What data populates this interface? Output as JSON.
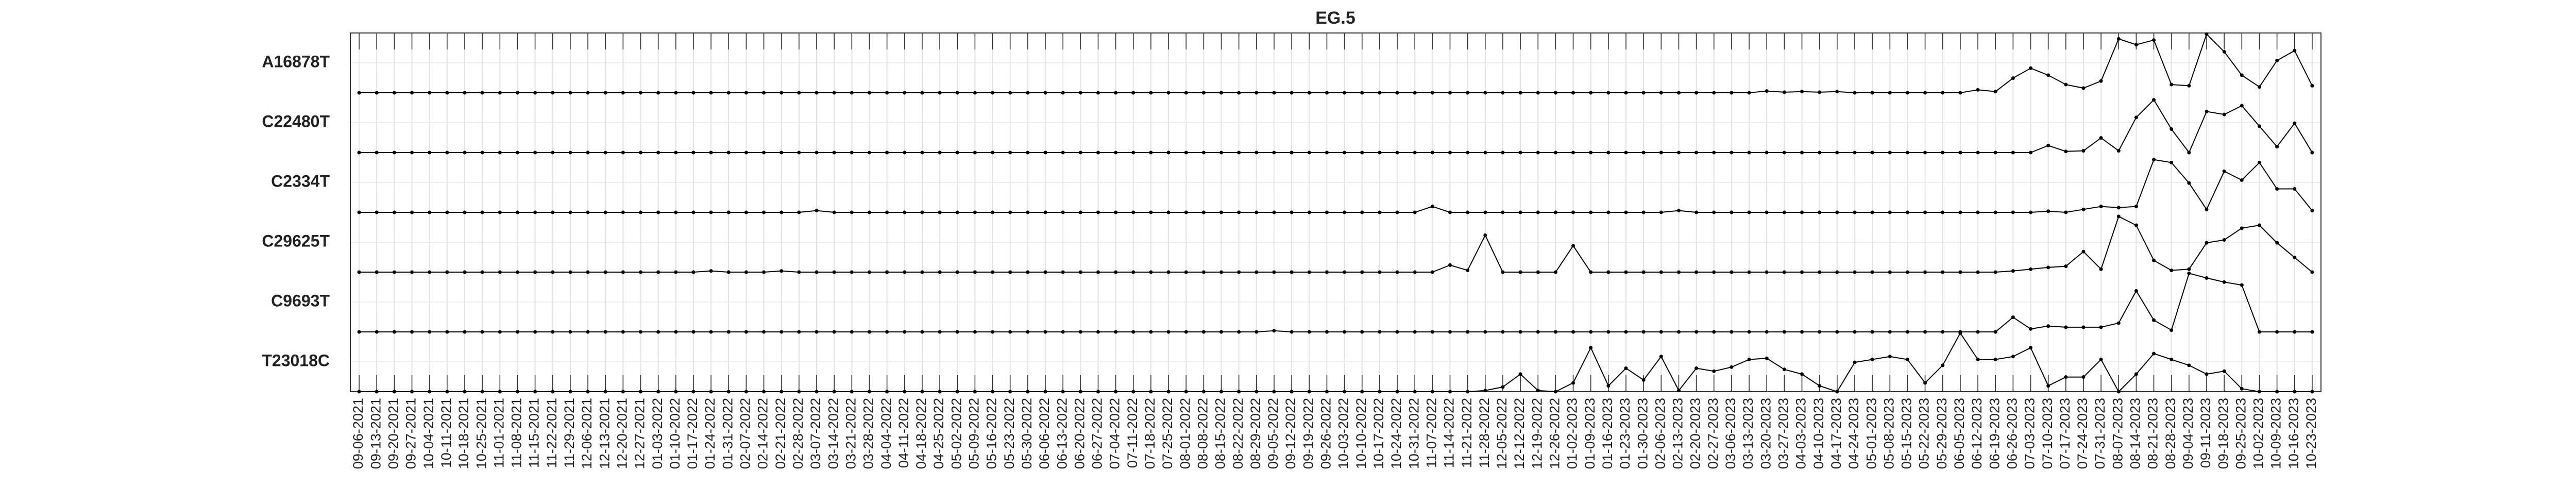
{
  "chart_data": {
    "type": "line",
    "title": "EG.5",
    "categories": [
      "09-06-2021",
      "09-13-2021",
      "09-20-2021",
      "09-27-2021",
      "10-04-2021",
      "10-11-2021",
      "10-18-2021",
      "10-25-2021",
      "11-01-2021",
      "11-08-2021",
      "11-15-2021",
      "11-22-2021",
      "11-29-2021",
      "12-06-2021",
      "12-13-2021",
      "12-20-2021",
      "12-27-2021",
      "01-03-2022",
      "01-10-2022",
      "01-17-2022",
      "01-24-2022",
      "01-31-2022",
      "02-07-2022",
      "02-14-2022",
      "02-21-2022",
      "02-28-2022",
      "03-07-2022",
      "03-14-2022",
      "03-21-2022",
      "03-28-2022",
      "04-04-2022",
      "04-11-2022",
      "04-18-2022",
      "04-25-2022",
      "05-02-2022",
      "05-09-2022",
      "05-16-2022",
      "05-23-2022",
      "05-30-2022",
      "06-06-2022",
      "06-13-2022",
      "06-20-2022",
      "06-27-2022",
      "07-04-2022",
      "07-11-2022",
      "07-18-2022",
      "07-25-2022",
      "08-01-2022",
      "08-08-2022",
      "08-15-2022",
      "08-22-2022",
      "08-29-2022",
      "09-05-2022",
      "09-12-2022",
      "09-19-2022",
      "09-26-2022",
      "10-03-2022",
      "10-10-2022",
      "10-17-2022",
      "10-24-2022",
      "10-31-2022",
      "11-07-2022",
      "11-14-2022",
      "11-21-2022",
      "11-28-2022",
      "12-05-2022",
      "12-12-2022",
      "12-19-2022",
      "12-26-2022",
      "01-02-2023",
      "01-09-2023",
      "01-16-2023",
      "01-23-2023",
      "01-30-2023",
      "02-06-2023",
      "02-13-2023",
      "02-20-2023",
      "02-27-2023",
      "03-06-2023",
      "03-13-2023",
      "03-20-2023",
      "03-27-2023",
      "04-03-2023",
      "04-10-2023",
      "04-17-2023",
      "04-24-2023",
      "05-01-2023",
      "05-08-2023",
      "05-15-2023",
      "05-22-2023",
      "05-29-2023",
      "06-05-2023",
      "06-12-2023",
      "06-19-2023",
      "06-26-2023",
      "07-03-2023",
      "07-10-2023",
      "07-17-2023",
      "07-24-2023",
      "07-31-2023",
      "08-07-2023",
      "08-14-2023",
      "08-21-2023",
      "08-28-2023",
      "09-04-2023",
      "09-11-2023",
      "09-18-2023",
      "09-25-2023",
      "10-02-2023",
      "10-09-2023",
      "10-16-2023",
      "10-23-2023"
    ],
    "ylim": [
      0,
      1
    ],
    "grid": true,
    "series": [
      {
        "name": "A16878T",
        "color": "#000000",
        "values": [
          0,
          0,
          0,
          0,
          0,
          0,
          0,
          0,
          0,
          0,
          0,
          0,
          0,
          0,
          0,
          0,
          0,
          0,
          0,
          0,
          0,
          0,
          0,
          0,
          0,
          0,
          0,
          0,
          0,
          0,
          0,
          0,
          0,
          0,
          0,
          0,
          0,
          0,
          0,
          0,
          0,
          0,
          0,
          0,
          0,
          0,
          0,
          0,
          0,
          0,
          0,
          0,
          0,
          0,
          0,
          0,
          0,
          0,
          0,
          0,
          0,
          0,
          0,
          0,
          0,
          0,
          0,
          0,
          0,
          0,
          0,
          0,
          0,
          0,
          0,
          0,
          0,
          0,
          0,
          0,
          0.03,
          0.01,
          0.02,
          0.01,
          0.02,
          0,
          0,
          0,
          0,
          0,
          0,
          0,
          0.05,
          0.02,
          0.25,
          0.42,
          0.3,
          0.14,
          0.08,
          0.2,
          0.92,
          0.82,
          0.9,
          0.14,
          0.12,
          1.0,
          0.7,
          0.3,
          0.1,
          0.55,
          0.72,
          0.12
        ]
      },
      {
        "name": "C22480T",
        "color": "#000000",
        "values": [
          0,
          0,
          0,
          0,
          0,
          0,
          0,
          0,
          0,
          0,
          0,
          0,
          0,
          0,
          0,
          0,
          0,
          0,
          0,
          0,
          0,
          0,
          0,
          0,
          0,
          0,
          0,
          0,
          0,
          0,
          0,
          0,
          0,
          0,
          0,
          0,
          0,
          0,
          0,
          0,
          0,
          0,
          0,
          0,
          0,
          0,
          0,
          0,
          0,
          0,
          0,
          0,
          0,
          0,
          0,
          0,
          0,
          0,
          0,
          0,
          0,
          0,
          0,
          0,
          0,
          0,
          0,
          0,
          0,
          0,
          0,
          0,
          0,
          0,
          0,
          0,
          0,
          0,
          0,
          0,
          0,
          0,
          0,
          0,
          0,
          0,
          0,
          0,
          0,
          0,
          0,
          0,
          0,
          0,
          0,
          0,
          0.12,
          0.02,
          0.03,
          0.25,
          0.03,
          0.6,
          0.9,
          0.4,
          0,
          0.7,
          0.65,
          0.8,
          0.45,
          0.1,
          0.5,
          0
        ]
      },
      {
        "name": "C2334T",
        "color": "#000000",
        "values": [
          0,
          0,
          0,
          0,
          0,
          0,
          0,
          0,
          0,
          0,
          0,
          0,
          0,
          0,
          0,
          0,
          0,
          0,
          0,
          0,
          0,
          0,
          0,
          0,
          0,
          0,
          0.03,
          0,
          0,
          0,
          0,
          0,
          0,
          0,
          0,
          0,
          0,
          0,
          0,
          0,
          0,
          0,
          0,
          0,
          0,
          0,
          0,
          0,
          0,
          0,
          0,
          0,
          0,
          0,
          0,
          0,
          0,
          0,
          0,
          0,
          0,
          0.1,
          0,
          0,
          0,
          0,
          0,
          0,
          0,
          0,
          0,
          0,
          0,
          0,
          0,
          0.03,
          0,
          0,
          0,
          0,
          0,
          0,
          0,
          0,
          0,
          0,
          0,
          0,
          0,
          0,
          0,
          0,
          0,
          0,
          0,
          0,
          0.02,
          0,
          0.05,
          0.1,
          0.08,
          0.1,
          0.9,
          0.85,
          0.5,
          0.05,
          0.7,
          0.55,
          0.85,
          0.4,
          0.4,
          0.03
        ]
      },
      {
        "name": "C29625T",
        "color": "#000000",
        "values": [
          0,
          0,
          0,
          0,
          0,
          0,
          0,
          0,
          0,
          0,
          0,
          0,
          0,
          0,
          0,
          0,
          0,
          0,
          0,
          0,
          0.02,
          0,
          0,
          0,
          0.02,
          0,
          0,
          0,
          0,
          0,
          0,
          0,
          0,
          0,
          0,
          0,
          0,
          0,
          0,
          0,
          0,
          0,
          0,
          0,
          0,
          0,
          0,
          0,
          0,
          0,
          0,
          0,
          0,
          0,
          0,
          0,
          0,
          0,
          0,
          0,
          0,
          0,
          0.12,
          0.03,
          0.63,
          0,
          0,
          0,
          0,
          0.45,
          0,
          0,
          0,
          0,
          0,
          0,
          0,
          0,
          0,
          0,
          0,
          0,
          0,
          0,
          0,
          0,
          0,
          0,
          0,
          0,
          0,
          0,
          0,
          0,
          0.02,
          0.05,
          0.08,
          0.1,
          0.35,
          0.05,
          0.95,
          0.8,
          0.2,
          0.03,
          0.05,
          0.5,
          0.55,
          0.75,
          0.8,
          0.5,
          0.25,
          0
        ]
      },
      {
        "name": "C9693T",
        "color": "#000000",
        "values": [
          0,
          0,
          0,
          0,
          0,
          0,
          0,
          0,
          0,
          0,
          0,
          0,
          0,
          0,
          0,
          0,
          0,
          0,
          0,
          0,
          0,
          0,
          0,
          0,
          0,
          0,
          0,
          0,
          0,
          0,
          0,
          0,
          0,
          0,
          0,
          0,
          0,
          0,
          0,
          0,
          0,
          0,
          0,
          0,
          0,
          0,
          0,
          0,
          0,
          0,
          0,
          0,
          0.02,
          0,
          0,
          0,
          0,
          0,
          0,
          0,
          0,
          0,
          0,
          0,
          0,
          0,
          0,
          0,
          0,
          0,
          0,
          0,
          0,
          0,
          0,
          0,
          0,
          0,
          0,
          0,
          0,
          0,
          0,
          0,
          0,
          0,
          0,
          0,
          0,
          0,
          0,
          0,
          0,
          0,
          0.25,
          0.05,
          0.1,
          0.08,
          0.08,
          0.08,
          0.15,
          0.7,
          0.2,
          0.03,
          1.0,
          0.92,
          0.85,
          0.8,
          0,
          0,
          0,
          0
        ]
      },
      {
        "name": "T23018C",
        "color": "#000000",
        "values": [
          0,
          0,
          0,
          0,
          0,
          0,
          0,
          0,
          0,
          0,
          0,
          0,
          0,
          0,
          0,
          0,
          0,
          0,
          0,
          0,
          0,
          0,
          0,
          0,
          0,
          0,
          0,
          0,
          0,
          0,
          0,
          0,
          0,
          0,
          0,
          0,
          0,
          0,
          0,
          0,
          0,
          0,
          0,
          0,
          0,
          0,
          0,
          0,
          0,
          0,
          0,
          0,
          0,
          0,
          0,
          0,
          0,
          0,
          0,
          0,
          0,
          0,
          0,
          0,
          0.02,
          0.08,
          0.3,
          0.02,
          0,
          0.15,
          0.75,
          0.1,
          0.4,
          0.2,
          0.6,
          0.02,
          0.4,
          0.35,
          0.42,
          0.55,
          0.57,
          0.38,
          0.3,
          0.1,
          0,
          0.5,
          0.55,
          0.6,
          0.55,
          0.15,
          0.45,
          1.0,
          0.55,
          0.55,
          0.6,
          0.75,
          0.1,
          0.25,
          0.25,
          0.55,
          0,
          0.3,
          0.65,
          0.55,
          0.45,
          0.3,
          0.35,
          0.05,
          0,
          0,
          0,
          0
        ]
      }
    ]
  }
}
